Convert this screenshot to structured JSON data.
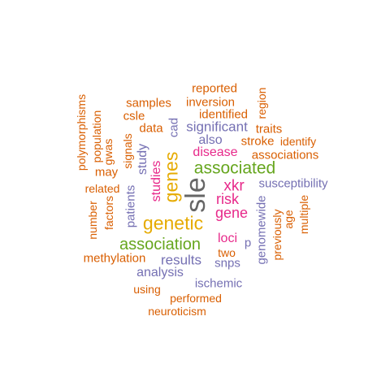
{
  "colors": {
    "gray": "#666666",
    "orange": "#d95f02",
    "green": "#66a61e",
    "purple": "#7570b3",
    "pink": "#e7298a",
    "gold": "#e6ab02"
  },
  "word_cloud": {
    "words": [
      {
        "text": "sle",
        "color": "gray"
      },
      {
        "text": "genetic",
        "color": "gold"
      },
      {
        "text": "genes",
        "color": "gold"
      },
      {
        "text": "associated",
        "color": "green"
      },
      {
        "text": "association",
        "color": "green"
      },
      {
        "text": "xkr",
        "color": "pink"
      },
      {
        "text": "risk",
        "color": "pink"
      },
      {
        "text": "gene",
        "color": "pink"
      },
      {
        "text": "disease",
        "color": "pink"
      },
      {
        "text": "loci",
        "color": "pink"
      },
      {
        "text": "studies",
        "color": "pink"
      },
      {
        "text": "significant",
        "color": "purple"
      },
      {
        "text": "study",
        "color": "purple"
      },
      {
        "text": "results",
        "color": "purple"
      },
      {
        "text": "analysis",
        "color": "purple"
      },
      {
        "text": "also",
        "color": "purple"
      },
      {
        "text": "susceptibility",
        "color": "purple"
      },
      {
        "text": "genomewide",
        "color": "purple"
      },
      {
        "text": "patients",
        "color": "purple"
      },
      {
        "text": "snps",
        "color": "purple"
      },
      {
        "text": "ischemic",
        "color": "purple"
      },
      {
        "text": "cad",
        "color": "purple"
      },
      {
        "text": "p",
        "color": "purple"
      },
      {
        "text": "reported",
        "color": "orange"
      },
      {
        "text": "inversion",
        "color": "orange"
      },
      {
        "text": "identified",
        "color": "orange"
      },
      {
        "text": "region",
        "color": "orange"
      },
      {
        "text": "samples",
        "color": "orange"
      },
      {
        "text": "csle",
        "color": "orange"
      },
      {
        "text": "data",
        "color": "orange"
      },
      {
        "text": "traits",
        "color": "orange"
      },
      {
        "text": "identify",
        "color": "orange"
      },
      {
        "text": "stroke",
        "color": "orange"
      },
      {
        "text": "associations",
        "color": "orange"
      },
      {
        "text": "polymorphisms",
        "color": "orange"
      },
      {
        "text": "population",
        "color": "orange"
      },
      {
        "text": "gwas",
        "color": "orange"
      },
      {
        "text": "signals",
        "color": "orange"
      },
      {
        "text": "may",
        "color": "orange"
      },
      {
        "text": "related",
        "color": "orange"
      },
      {
        "text": "factors",
        "color": "orange"
      },
      {
        "text": "number",
        "color": "orange"
      },
      {
        "text": "methylation",
        "color": "orange"
      },
      {
        "text": "age",
        "color": "orange"
      },
      {
        "text": "multiple",
        "color": "orange"
      },
      {
        "text": "previously",
        "color": "orange"
      },
      {
        "text": "two",
        "color": "orange"
      },
      {
        "text": "using",
        "color": "orange"
      },
      {
        "text": "performed",
        "color": "orange"
      },
      {
        "text": "neuroticism",
        "color": "orange"
      }
    ]
  }
}
